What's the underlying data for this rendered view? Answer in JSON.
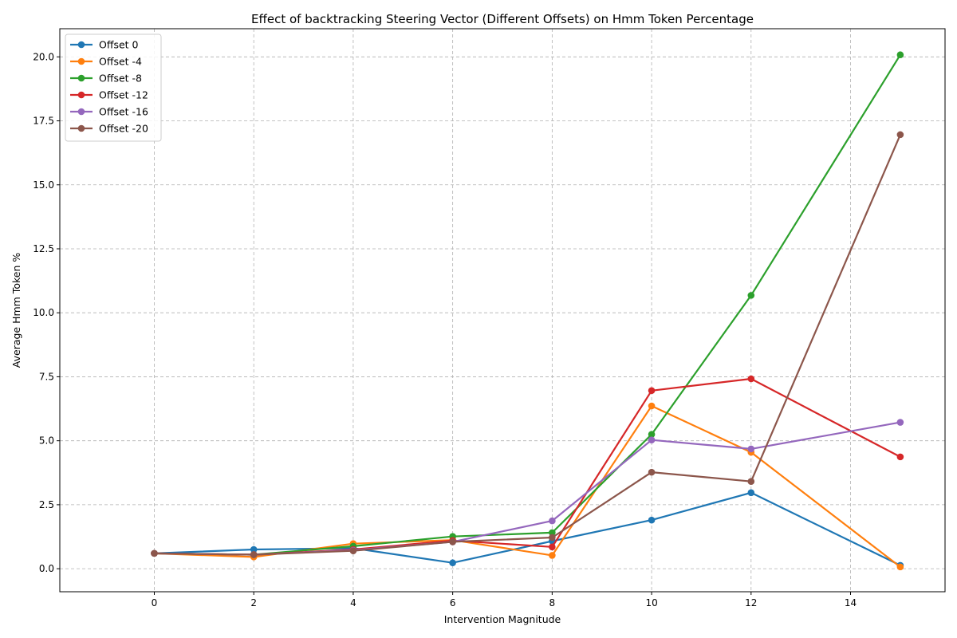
{
  "chart_data": {
    "type": "line",
    "title": "Effect of backtracking Steering Vector (Different Offsets) on Hmm Token Percentage",
    "xlabel": "Intervention Magnitude",
    "ylabel": "Average Hmm Token %",
    "xlim": [
      -1.9,
      15.9
    ],
    "ylim": [
      -0.9,
      21.1
    ],
    "xticks": [
      0,
      2,
      4,
      6,
      8,
      10,
      12,
      14
    ],
    "yticks": [
      0.0,
      2.5,
      5.0,
      7.5,
      10.0,
      12.5,
      15.0,
      17.5,
      20.0
    ],
    "xtick_labels": [
      "0",
      "2",
      "4",
      "6",
      "8",
      "10",
      "12",
      "14"
    ],
    "ytick_labels": [
      "0.0",
      "2.5",
      "5.0",
      "7.5",
      "10.0",
      "12.5",
      "15.0",
      "17.5",
      "20.0"
    ],
    "grid": true,
    "legend_position": "top-left",
    "x": [
      0,
      2,
      4,
      6,
      8,
      10,
      12,
      15
    ],
    "series": [
      {
        "name": "Offset 0",
        "color": "#1f77b4",
        "values": [
          0.6,
          0.75,
          0.8,
          0.23,
          1.08,
          1.9,
          2.97,
          0.13
        ]
      },
      {
        "name": "Offset -4",
        "color": "#ff7f0e",
        "values": [
          0.6,
          0.46,
          0.98,
          1.12,
          0.52,
          6.36,
          4.55,
          0.07
        ]
      },
      {
        "name": "Offset -8",
        "color": "#2ca02c",
        "values": [
          0.6,
          0.55,
          0.88,
          1.26,
          1.41,
          5.25,
          10.68,
          20.08
        ]
      },
      {
        "name": "Offset -12",
        "color": "#d62728",
        "values": [
          0.6,
          0.55,
          0.75,
          1.1,
          0.85,
          6.96,
          7.42,
          4.37
        ]
      },
      {
        "name": "Offset -16",
        "color": "#9467bd",
        "values": [
          0.6,
          0.55,
          0.72,
          1.05,
          1.87,
          5.03,
          4.68,
          5.72
        ]
      },
      {
        "name": "Offset -20",
        "color": "#8c564b",
        "values": [
          0.6,
          0.55,
          0.7,
          1.05,
          1.22,
          3.77,
          3.41,
          16.96
        ]
      }
    ]
  }
}
